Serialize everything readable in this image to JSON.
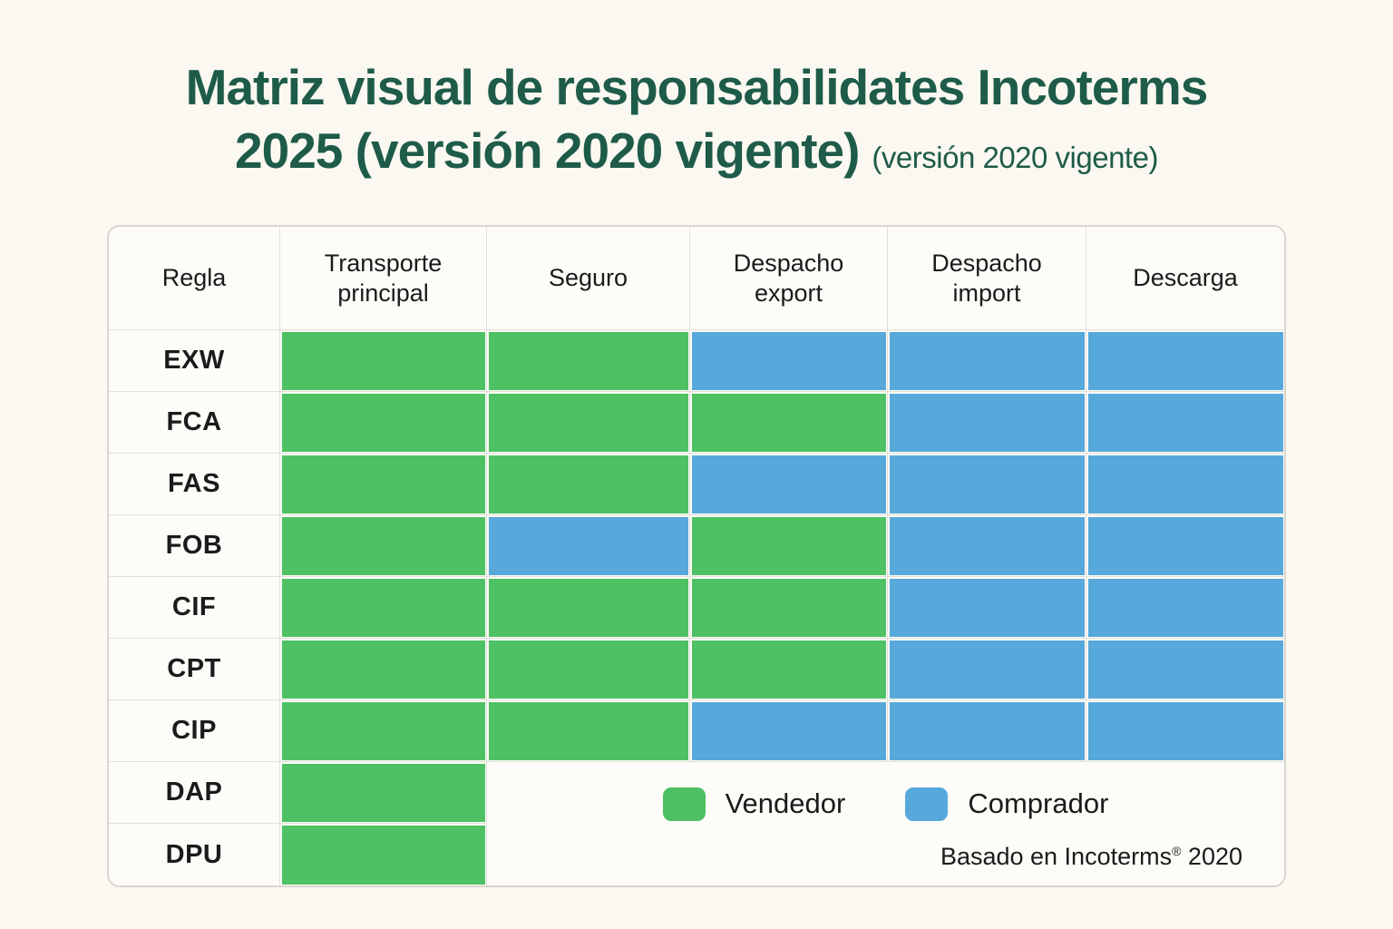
{
  "title": {
    "line1": "Matriz visual de responsabilidates Incoterms",
    "line2_main": "2025 (versión 2020 vigente)",
    "line2_note": "(versión 2020 vigente)"
  },
  "colors": {
    "vendedor": "#4DC163",
    "comprador": "#57A8DB",
    "title_green": "#1E5B49",
    "page_background": "#FAF8F1"
  },
  "chart_data": {
    "type": "heatmap",
    "title": "Matriz visual de responsabilidates Incoterms 2025 (versión 2020 vigente)",
    "columns": [
      "Regla",
      "Transporte principal",
      "Seguro",
      "Despacho export",
      "Despacho import",
      "Descarga"
    ],
    "value_legend": {
      "V": "Vendedor",
      "C": "Comprador"
    },
    "rows": [
      {
        "label": "EXW",
        "cells": [
          "V",
          "V",
          "C",
          "C",
          "C"
        ]
      },
      {
        "label": "FCA",
        "cells": [
          "V",
          "V",
          "V",
          "C",
          "C"
        ]
      },
      {
        "label": "FAS",
        "cells": [
          "V",
          "V",
          "C",
          "C",
          "C"
        ]
      },
      {
        "label": "FOB",
        "cells": [
          "V",
          "C",
          "V",
          "C",
          "C"
        ]
      },
      {
        "label": "CIF",
        "cells": [
          "V",
          "V",
          "V",
          "C",
          "C"
        ]
      },
      {
        "label": "CPT",
        "cells": [
          "V",
          "V",
          "V",
          "C",
          "C"
        ]
      },
      {
        "label": "CIP",
        "cells": [
          "V",
          "V",
          "C",
          "C",
          "C"
        ]
      },
      {
        "label": "DAP",
        "cells": [
          "V",
          null,
          null,
          null,
          null
        ]
      },
      {
        "label": "DPU",
        "cells": [
          "V",
          null,
          null,
          null,
          null
        ]
      }
    ]
  },
  "legend": {
    "vendedor_label": "Vendedor",
    "comprador_label": "Comprador",
    "footnote_before_sup": "Basado en Incoterms",
    "footnote_sup": "®",
    "footnote_after_sup": " 2020"
  }
}
